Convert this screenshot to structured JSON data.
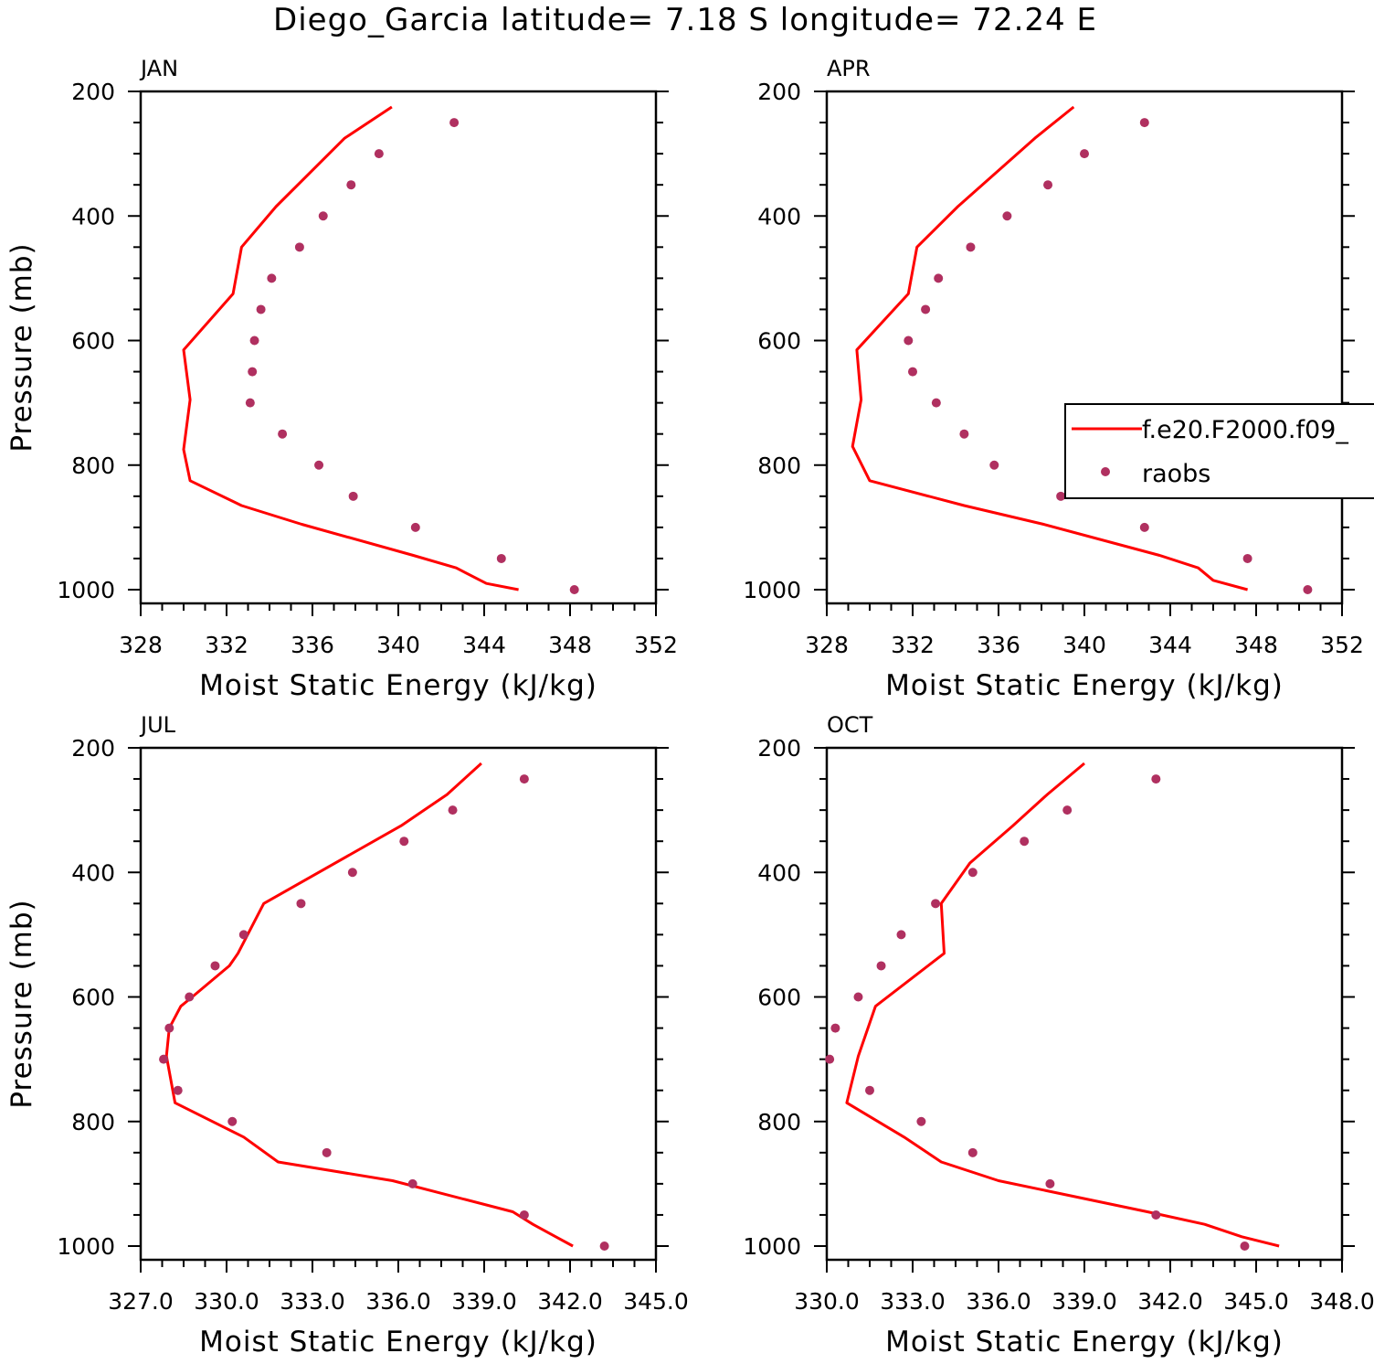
{
  "title": "Diego_Garcia  latitude= 7.18 S longitude= 72.24 E",
  "colors": {
    "model": "#ff0000",
    "raobs": "#b03060",
    "axis": "#000000"
  },
  "legend": {
    "model_label": "f.e20.F2000.f09_",
    "raobs_label": "raobs",
    "panel": "APR",
    "placement": "right"
  },
  "chart_data": [
    {
      "type": "line",
      "panel": "JAN",
      "xlabel": "Moist Static Energy (kJ/kg)",
      "ylabel": "Pressure (mb)",
      "xlim": [
        328,
        352
      ],
      "ylim": [
        1000,
        200
      ],
      "x_ticks": [
        "328",
        "332",
        "336",
        "340",
        "344",
        "348",
        "352"
      ],
      "y_ticks": [
        "200",
        "400",
        "600",
        "800",
        "1000"
      ],
      "series": [
        {
          "kind": "line",
          "x": [
            345.6,
            344.1,
            342.7,
            340.7,
            335.5,
            332.7,
            330.3,
            330.0,
            330.3,
            330.0,
            332.3,
            332.7,
            334.3,
            337.5,
            339.7
          ],
          "y": [
            1000,
            990,
            965,
            945,
            895,
            865,
            825,
            775,
            695,
            615,
            525,
            450,
            385,
            275,
            225
          ]
        },
        {
          "kind": "points",
          "x": [
            348.2,
            344.8,
            340.8,
            337.9,
            336.3,
            334.6,
            333.1,
            333.2,
            333.3,
            333.6,
            334.1,
            335.4,
            336.5,
            337.8,
            339.1,
            342.6
          ],
          "y": [
            1000,
            950,
            900,
            850,
            800,
            750,
            700,
            650,
            600,
            550,
            500,
            450,
            400,
            350,
            300,
            250
          ]
        }
      ]
    },
    {
      "type": "line",
      "panel": "APR",
      "xlabel": "Moist Static Energy (kJ/kg)",
      "ylabel": "",
      "xlim": [
        328,
        352
      ],
      "ylim": [
        1000,
        200
      ],
      "x_ticks": [
        "328",
        "332",
        "336",
        "340",
        "344",
        "348",
        "352"
      ],
      "y_ticks": [
        "200",
        "400",
        "600",
        "800",
        "1000"
      ],
      "series": [
        {
          "kind": "line",
          "x": [
            347.6,
            346.0,
            345.3,
            343.5,
            338.1,
            334.4,
            330.0,
            329.2,
            329.6,
            329.4,
            331.8,
            332.2,
            334.1,
            337.7,
            339.5
          ],
          "y": [
            1000,
            985,
            965,
            945,
            895,
            865,
            825,
            770,
            695,
            615,
            525,
            450,
            385,
            275,
            225
          ]
        },
        {
          "kind": "points",
          "x": [
            350.4,
            347.6,
            342.8,
            338.9,
            335.8,
            334.4,
            333.1,
            332.0,
            331.8,
            332.6,
            333.2,
            334.7,
            336.4,
            338.3,
            340.0,
            342.8
          ],
          "y": [
            1000,
            950,
            900,
            850,
            800,
            750,
            700,
            650,
            600,
            550,
            500,
            450,
            400,
            350,
            300,
            250
          ]
        }
      ]
    },
    {
      "type": "line",
      "panel": "JUL",
      "xlabel": "Moist Static Energy (kJ/kg)",
      "ylabel": "Pressure (mb)",
      "xlim": [
        327,
        345
      ],
      "ylim": [
        1000,
        200
      ],
      "x_ticks": [
        "327.0",
        "330.0",
        "333.0",
        "336.0",
        "339.0",
        "342.0",
        "345.0"
      ],
      "y_ticks": [
        "200",
        "400",
        "600",
        "800",
        "1000"
      ],
      "series": [
        {
          "kind": "line",
          "x": [
            342.1,
            341.5,
            340.7,
            340.0,
            335.8,
            331.8,
            330.6,
            328.2,
            327.9,
            328.0,
            328.4,
            328.8,
            330.1,
            330.4,
            331.3,
            336.1,
            337.7,
            338.9
          ],
          "y": [
            1000,
            985,
            965,
            945,
            895,
            865,
            825,
            770,
            695,
            650,
            615,
            600,
            550,
            530,
            450,
            325,
            275,
            225
          ]
        },
        {
          "kind": "points",
          "x": [
            343.2,
            340.4,
            336.5,
            333.5,
            330.2,
            328.3,
            327.8,
            328.0,
            328.7,
            329.6,
            330.6,
            332.6,
            334.4,
            336.2,
            337.9,
            340.4
          ],
          "y": [
            1000,
            950,
            900,
            850,
            800,
            750,
            700,
            650,
            600,
            550,
            500,
            450,
            400,
            350,
            300,
            250
          ]
        }
      ]
    },
    {
      "type": "line",
      "panel": "OCT",
      "xlabel": "Moist Static Energy (kJ/kg)",
      "ylabel": "",
      "xlim": [
        330,
        348
      ],
      "ylim": [
        1000,
        200
      ],
      "x_ticks": [
        "330.0",
        "333.0",
        "336.0",
        "339.0",
        "342.0",
        "345.0",
        "348.0"
      ],
      "y_ticks": [
        "200",
        "400",
        "600",
        "800",
        "1000"
      ],
      "series": [
        {
          "kind": "line",
          "x": [
            345.8,
            344.5,
            343.2,
            341.2,
            336.0,
            334.0,
            332.7,
            330.7,
            331.1,
            331.7,
            334.1,
            334.0,
            335.0,
            336.5,
            337.7,
            339.0
          ],
          "y": [
            1000,
            985,
            965,
            945,
            895,
            865,
            825,
            770,
            695,
            615,
            530,
            450,
            385,
            325,
            275,
            225
          ]
        },
        {
          "kind": "points",
          "x": [
            344.6,
            341.5,
            337.8,
            335.1,
            333.3,
            331.5,
            330.1,
            330.3,
            331.1,
            331.9,
            332.6,
            333.8,
            335.1,
            336.9,
            338.4,
            341.5
          ],
          "y": [
            1000,
            950,
            900,
            850,
            800,
            750,
            700,
            650,
            600,
            550,
            500,
            450,
            400,
            350,
            300,
            250
          ]
        }
      ]
    }
  ]
}
